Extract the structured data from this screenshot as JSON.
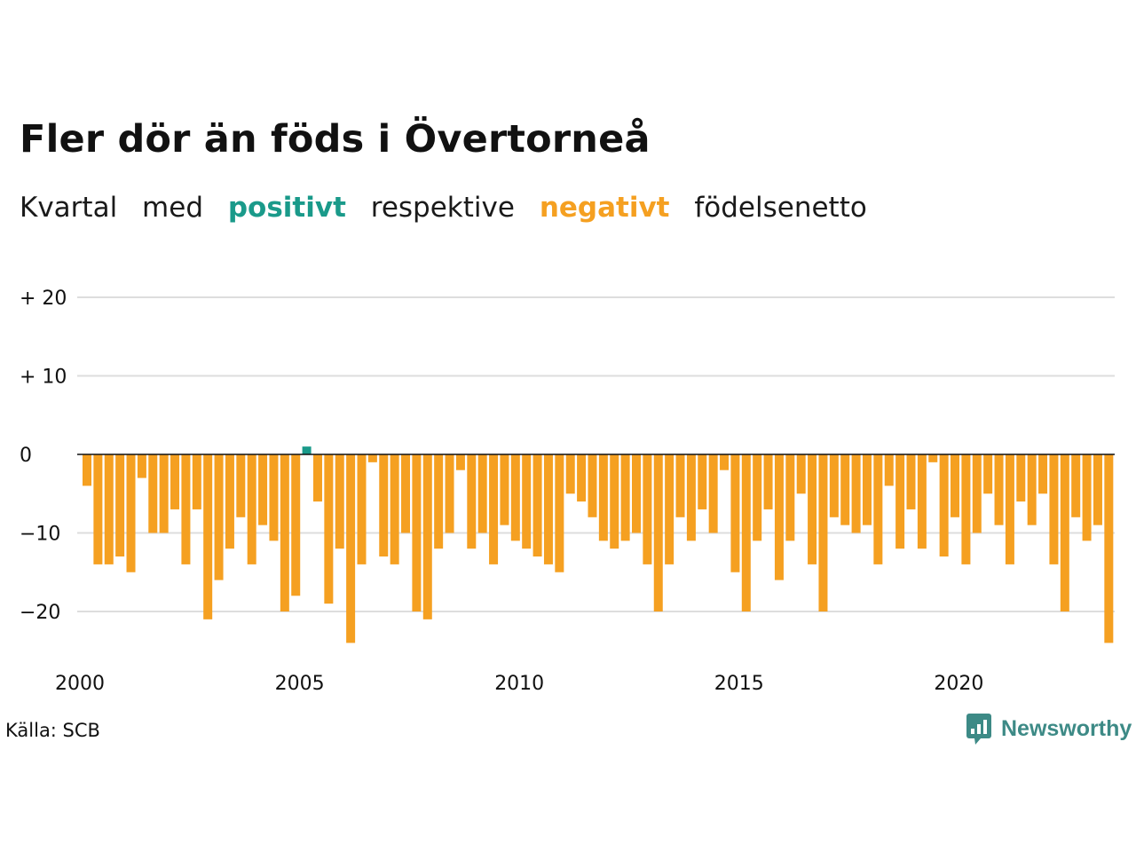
{
  "title": "Fler dör än föds i Övertorneå",
  "subtitle": {
    "w1": "Kvartal",
    "w2": "med",
    "positive": "positivt",
    "w3": "respektive",
    "negative": "negativt",
    "w4": "födelsenetto"
  },
  "source": "Källa: SCB",
  "brand": "Newsworthy",
  "colors": {
    "positive": "#1a9a8a",
    "negative": "#f5a021",
    "grid": "#dddddd",
    "baseline": "#111111",
    "brand": "#3d8a86"
  },
  "chart_data": {
    "type": "bar",
    "x_start_year": 2000,
    "periods_per_year": 4,
    "values": [
      -4,
      -14,
      -14,
      -13,
      -15,
      -3,
      -10,
      -10,
      -7,
      -14,
      -7,
      -21,
      -16,
      -12,
      -8,
      -14,
      -9,
      -11,
      -20,
      -18,
      1,
      -6,
      -19,
      -12,
      -24,
      -14,
      -1,
      -13,
      -14,
      -10,
      -20,
      -21,
      -12,
      -10,
      -2,
      -12,
      -10,
      -14,
      -9,
      -11,
      -12,
      -13,
      -14,
      -15,
      -5,
      -6,
      -8,
      -11,
      -12,
      -11,
      -10,
      -14,
      -20,
      -14,
      -8,
      -11,
      -7,
      -10,
      -2,
      -15,
      -20,
      -11,
      -7,
      -16,
      -11,
      -5,
      -14,
      -20,
      -8,
      -9,
      -10,
      -9,
      -14,
      -4,
      -12,
      -7,
      -12,
      -1,
      -13,
      -8,
      -14,
      -10,
      -5,
      -9,
      -14,
      -6,
      -9,
      -5,
      -14,
      -20,
      -8,
      -11,
      -9,
      -24
    ],
    "y_ticks": [
      20,
      10,
      0,
      -10,
      -20
    ],
    "y_tick_labels": [
      "+ 20",
      "+ 10",
      "0",
      "−10",
      "−20"
    ],
    "x_ticks": [
      2000,
      2005,
      2010,
      2015,
      2020
    ],
    "x_tick_labels": [
      "2000",
      "2005",
      "2010",
      "2015",
      "2020"
    ],
    "ylim": [
      -25,
      20
    ],
    "grid": true,
    "legend": "none"
  }
}
